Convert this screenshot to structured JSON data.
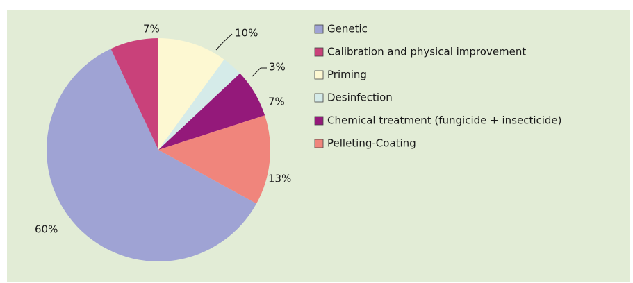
{
  "chart_data": {
    "type": "pie",
    "categories": [
      "Genetic",
      "Calibration and physical improvement",
      "Priming",
      "Desinfection",
      "Chemical treatment (fungicide + insecticide)",
      "Pelleting-Coating"
    ],
    "values": [
      60,
      7,
      10,
      3,
      7,
      13
    ],
    "value_labels": [
      "60%",
      "7%",
      "10%",
      "3%",
      "7%",
      "13%"
    ],
    "colors": [
      "#9fa3d4",
      "#c9417a",
      "#fdf8d2",
      "#d5ebe9",
      "#94197a",
      "#f0857c"
    ],
    "legend": "right"
  }
}
